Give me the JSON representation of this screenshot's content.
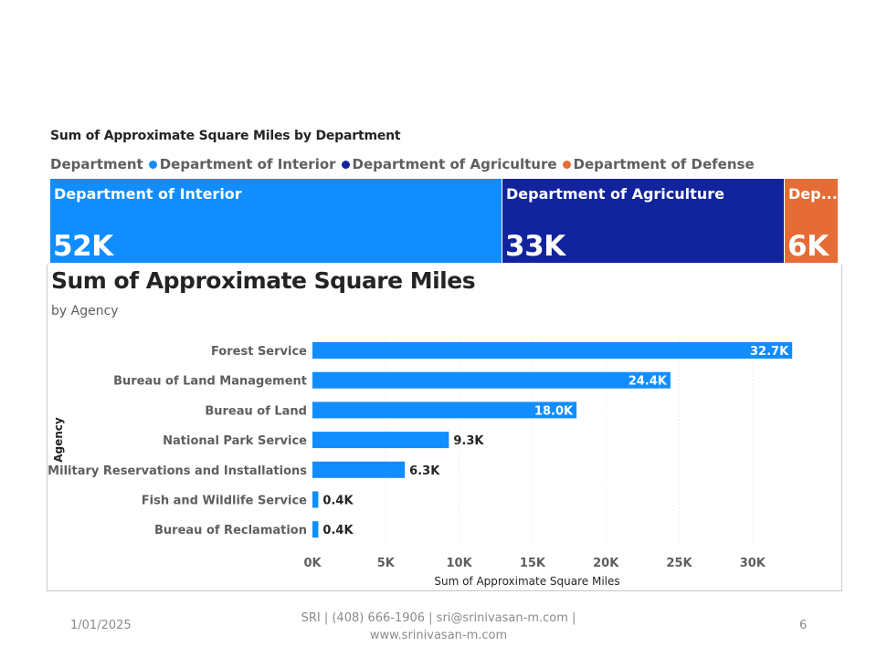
{
  "treemap": {
    "title": "Sum of Approximate Square Miles by Department",
    "legend_title": "Department",
    "tiles": [
      {
        "label": "Department of Interior",
        "value_label": "52K",
        "value": 52,
        "color": "#118dff"
      },
      {
        "label": "Department of Agriculture",
        "value_label": "33K",
        "value": 33,
        "color": "#12239e"
      },
      {
        "label": "Dep...",
        "value_label": "6K",
        "value": 6,
        "color": "#e66c37"
      }
    ],
    "legend_items": [
      {
        "label": "Department of Interior",
        "color": "#118dff"
      },
      {
        "label": "Department of Agriculture",
        "color": "#12239e"
      },
      {
        "label": "Department of Defense",
        "color": "#e66c37"
      }
    ]
  },
  "chart_data": {
    "type": "bar",
    "orientation": "horizontal",
    "title": "Sum of Approximate Square Miles",
    "subtitle": "by Agency",
    "xlabel": "Sum of Approximate Square Miles",
    "ylabel": "Agency",
    "xlim": [
      0,
      33000
    ],
    "xticks": [
      {
        "value": 0,
        "label": "0K"
      },
      {
        "value": 5000,
        "label": "5K"
      },
      {
        "value": 10000,
        "label": "10K"
      },
      {
        "value": 15000,
        "label": "15K"
      },
      {
        "value": 20000,
        "label": "20K"
      },
      {
        "value": 25000,
        "label": "25K"
      },
      {
        "value": 30000,
        "label": "30K"
      }
    ],
    "categories": [
      "Forest Service",
      "Bureau of Land Management",
      "Bureau of Land",
      "National Park Service",
      "Military Reservations and Installations",
      "Fish and Wildlife Service",
      "Bureau of Reclamation"
    ],
    "values": [
      32700,
      24400,
      18000,
      9300,
      6300,
      400,
      400
    ],
    "value_labels": [
      "32.7K",
      "24.4K",
      "18.0K",
      "9.3K",
      "6.3K",
      "0.4K",
      "0.4K"
    ],
    "bar_color": "#118dff",
    "grid": true
  },
  "footer": {
    "date": "1/01/2025",
    "line1": "SRI | (408) 666-1906 | sri@srinivasan-m.com |",
    "line2": "www.srinivasan-m.com",
    "page": "6"
  }
}
